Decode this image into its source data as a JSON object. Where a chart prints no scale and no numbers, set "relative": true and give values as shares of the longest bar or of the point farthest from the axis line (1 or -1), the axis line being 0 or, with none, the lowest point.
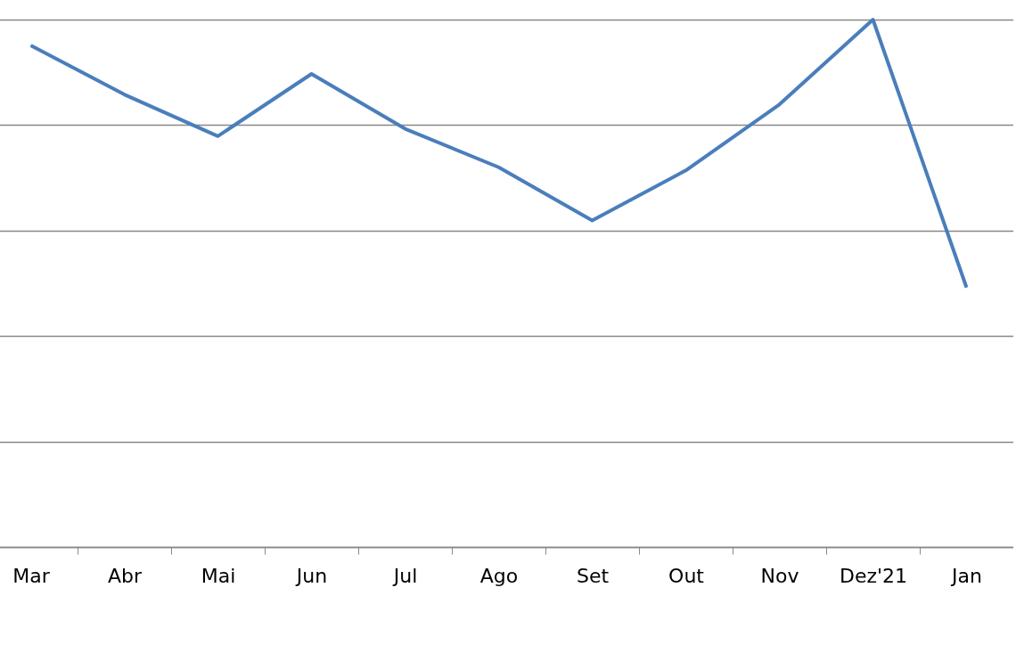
{
  "chart_data": {
    "type": "line",
    "relative": true,
    "categories": [
      "Mar",
      "Abr",
      "Mai",
      "Jun",
      "Jul",
      "Ago",
      "Set",
      "Out",
      "Nov",
      "Dez'21",
      "Jan"
    ],
    "series": [
      {
        "color": "#4a7ebb",
        "values": [
          0.951,
          0.858,
          0.779,
          0.897,
          0.793,
          0.72,
          0.619,
          0.714,
          0.839,
          1,
          0.492
        ]
      }
    ],
    "grid": "y",
    "marker": "none",
    "line_style": "solid"
  }
}
